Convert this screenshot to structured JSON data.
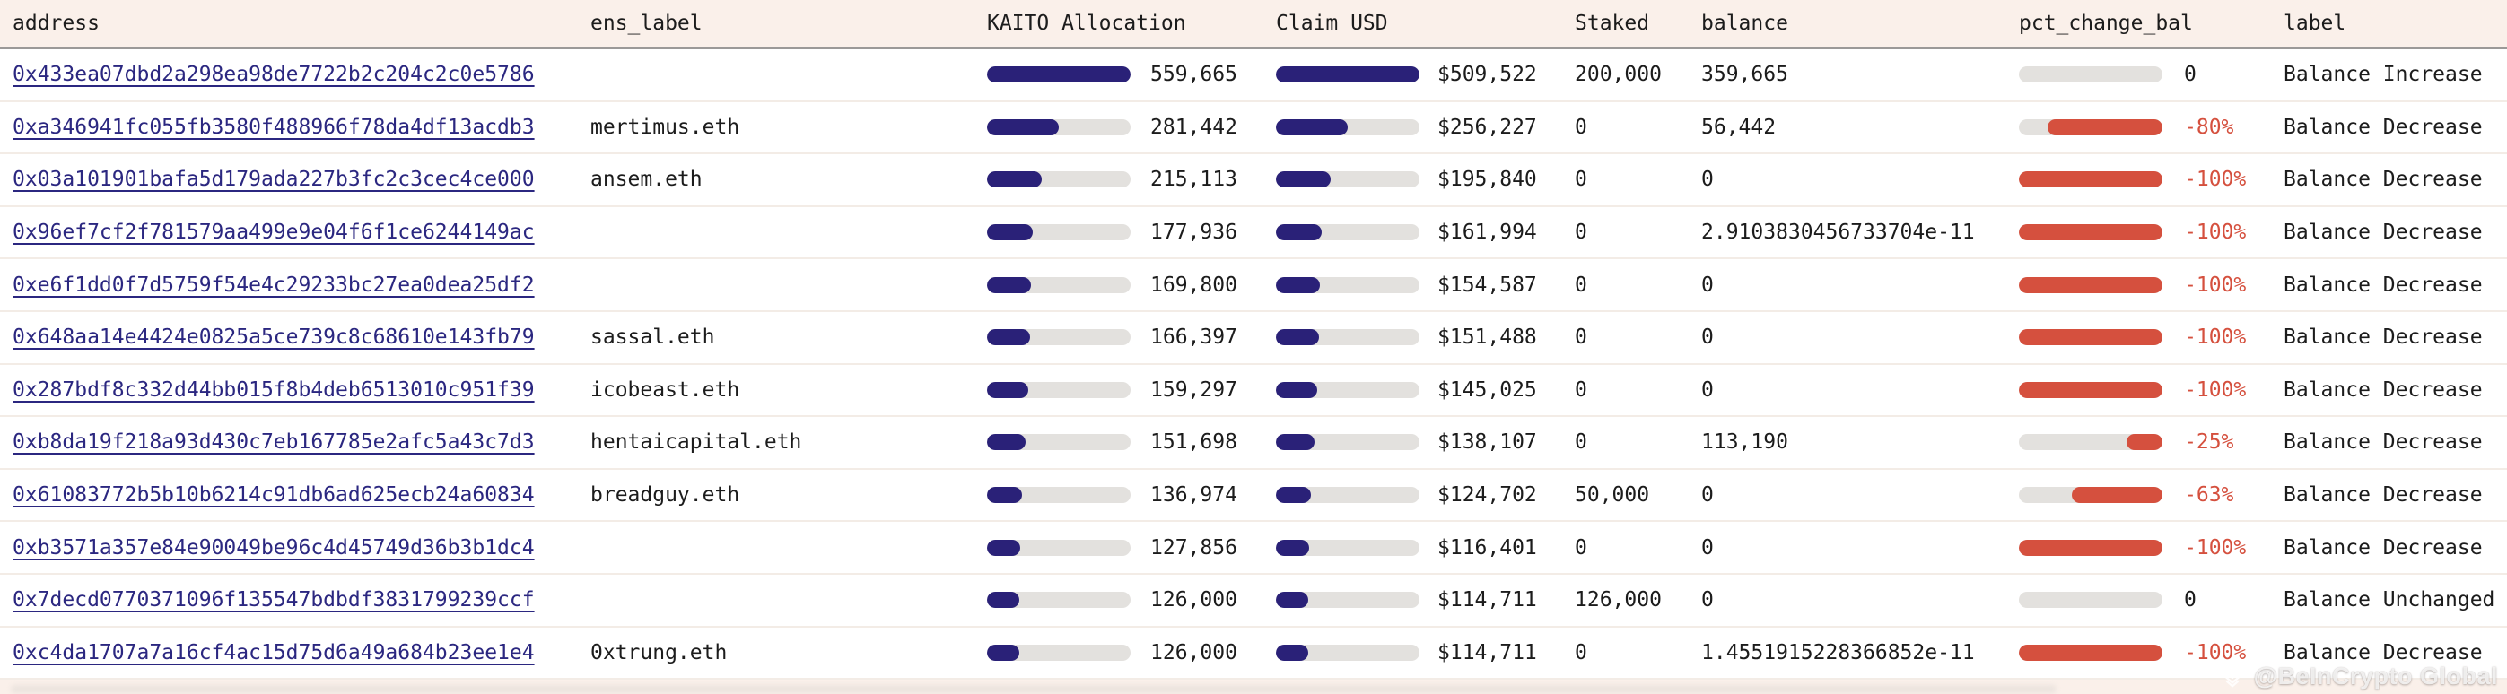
{
  "table": {
    "columns": [
      {
        "key": "address",
        "label": "address"
      },
      {
        "key": "ens_label",
        "label": "ens_label"
      },
      {
        "key": "kaito_allocation",
        "label": "KAITO Allocation"
      },
      {
        "key": "claim_usd",
        "label": "Claim USD"
      },
      {
        "key": "staked",
        "label": "Staked"
      },
      {
        "key": "balance",
        "label": "balance"
      },
      {
        "key": "pct_change_bal",
        "label": "pct_change_bal"
      },
      {
        "key": "label",
        "label": "label"
      }
    ],
    "rows": [
      {
        "address": "0x433ea07dbd2a298ea98de7722b2c204c2c0e5786",
        "ens_label": "",
        "kaito_allocation": "559,665",
        "claim_usd": "$509,522",
        "staked": "200,000",
        "balance": "359,665",
        "pct_change_bal": "0",
        "label": "Balance Increase"
      },
      {
        "address": "0xa346941fc055fb3580f488966f78da4df13acdb3",
        "ens_label": "mertimus.eth",
        "kaito_allocation": "281,442",
        "claim_usd": "$256,227",
        "staked": "0",
        "balance": "56,442",
        "pct_change_bal": "-80%",
        "label": "Balance Decrease"
      },
      {
        "address": "0x03a101901bafa5d179ada227b3fc2c3cec4ce000",
        "ens_label": "ansem.eth",
        "kaito_allocation": "215,113",
        "claim_usd": "$195,840",
        "staked": "0",
        "balance": "0",
        "pct_change_bal": "-100%",
        "label": "Balance Decrease"
      },
      {
        "address": "0x96ef7cf2f781579aa499e9e04f6f1ce6244149ac",
        "ens_label": "",
        "kaito_allocation": "177,936",
        "claim_usd": "$161,994",
        "staked": "0",
        "balance": "2.9103830456733704e-11",
        "pct_change_bal": "-100%",
        "label": "Balance Decrease"
      },
      {
        "address": "0xe6f1dd0f7d5759f54e4c29233bc27ea0dea25df2",
        "ens_label": "",
        "kaito_allocation": "169,800",
        "claim_usd": "$154,587",
        "staked": "0",
        "balance": "0",
        "pct_change_bal": "-100%",
        "label": "Balance Decrease"
      },
      {
        "address": "0x648aa14e4424e0825a5ce739c8c68610e143fb79",
        "ens_label": "sassal.eth",
        "kaito_allocation": "166,397",
        "claim_usd": "$151,488",
        "staked": "0",
        "balance": "0",
        "pct_change_bal": "-100%",
        "label": "Balance Decrease"
      },
      {
        "address": "0x287bdf8c332d44bb015f8b4deb6513010c951f39",
        "ens_label": "icobeast.eth",
        "kaito_allocation": "159,297",
        "claim_usd": "$145,025",
        "staked": "0",
        "balance": "0",
        "pct_change_bal": "-100%",
        "label": "Balance Decrease"
      },
      {
        "address": "0xb8da19f218a93d430c7eb167785e2afc5a43c7d3",
        "ens_label": "hentaicapital.eth",
        "kaito_allocation": "151,698",
        "claim_usd": "$138,107",
        "staked": "0",
        "balance": "113,190",
        "pct_change_bal": "-25%",
        "label": "Balance Decrease"
      },
      {
        "address": "0x61083772b5b10b6214c91db6ad625ecb24a60834",
        "ens_label": "breadguy.eth",
        "kaito_allocation": "136,974",
        "claim_usd": "$124,702",
        "staked": "50,000",
        "balance": "0",
        "pct_change_bal": "-63%",
        "label": "Balance Decrease"
      },
      {
        "address": "0xb3571a357e84e90049be96c4d45749d36b3b1dc4",
        "ens_label": "",
        "kaito_allocation": "127,856",
        "claim_usd": "$116,401",
        "staked": "0",
        "balance": "0",
        "pct_change_bal": "-100%",
        "label": "Balance Decrease"
      },
      {
        "address": "0x7decd0770371096f135547bdbdf3831799239ccf",
        "ens_label": "",
        "kaito_allocation": "126,000",
        "claim_usd": "$114,711",
        "staked": "126,000",
        "balance": "0",
        "pct_change_bal": "0",
        "label": "Balance Unchanged"
      },
      {
        "address": "0xc4da1707a7a16cf4ac15d75d6a49a684b23ee1e4",
        "ens_label": "0xtrung.eth",
        "kaito_allocation": "126,000",
        "claim_usd": "$114,711",
        "staked": "0",
        "balance": "1.4551915228366852e-11",
        "pct_change_bal": "-100%",
        "label": "Balance Decrease"
      }
    ]
  },
  "watermark": {
    "icon": "beincrypto-diamond",
    "text": "@BeInCrypto Global"
  },
  "colors": {
    "page_bg": "#faf0ea",
    "row_bg": "#ffffff",
    "text": "#1c1c1c",
    "link_navy": "#2b2780",
    "bar_navy": "#2a2178",
    "bar_red": "#d5503e",
    "bar_track_gray": "#e3e1de",
    "header_border_gray": "#9b9998",
    "row_border": "#f3ece6"
  }
}
